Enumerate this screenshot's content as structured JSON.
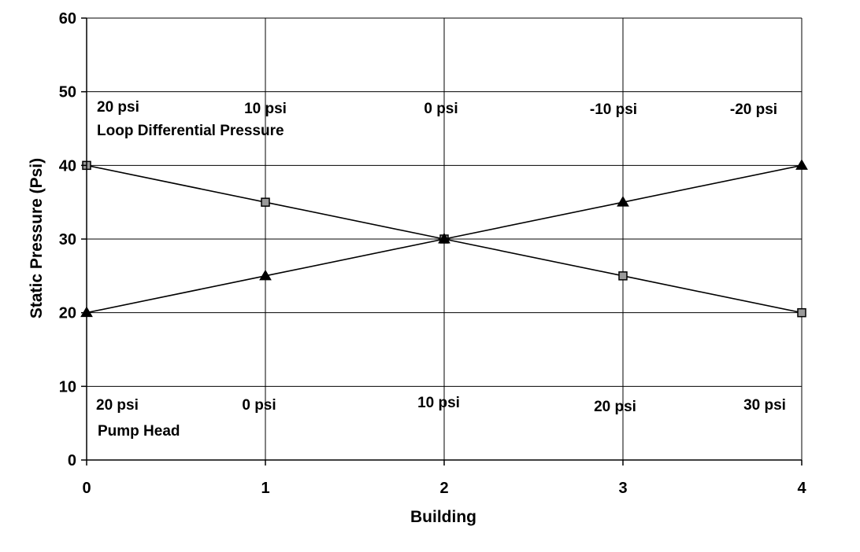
{
  "chart_data": {
    "type": "line",
    "xlabel": "Building",
    "ylabel": "Static Pressure (Psi)",
    "xlim": [
      0,
      4
    ],
    "ylim": [
      0,
      60
    ],
    "x_ticks": [
      "0",
      "1",
      "2",
      "3",
      "4"
    ],
    "y_ticks": [
      "0",
      "10",
      "20",
      "30",
      "40",
      "50",
      "60"
    ],
    "grid": true,
    "legend": "none",
    "x": [
      0,
      1,
      2,
      3,
      4
    ],
    "series": [
      {
        "marker": "square",
        "color": "#000000",
        "marker_fill": "#9a9a9a",
        "values": [
          40,
          35,
          30,
          25,
          20
        ]
      },
      {
        "marker": "triangle",
        "color": "#000000",
        "marker_fill": "#000000",
        "values": [
          20,
          25,
          30,
          35,
          40
        ]
      }
    ],
    "annotations": {
      "loop_title": "Loop Differential Pressure",
      "loop_values": [
        "20 psi",
        "10 psi",
        "0 psi",
        "-10 psi",
        "-20 psi"
      ],
      "pump_title": "Pump Head",
      "pump_values": [
        "20 psi",
        "0 psi",
        "10 psi",
        "20 psi",
        "30 psi"
      ]
    }
  }
}
